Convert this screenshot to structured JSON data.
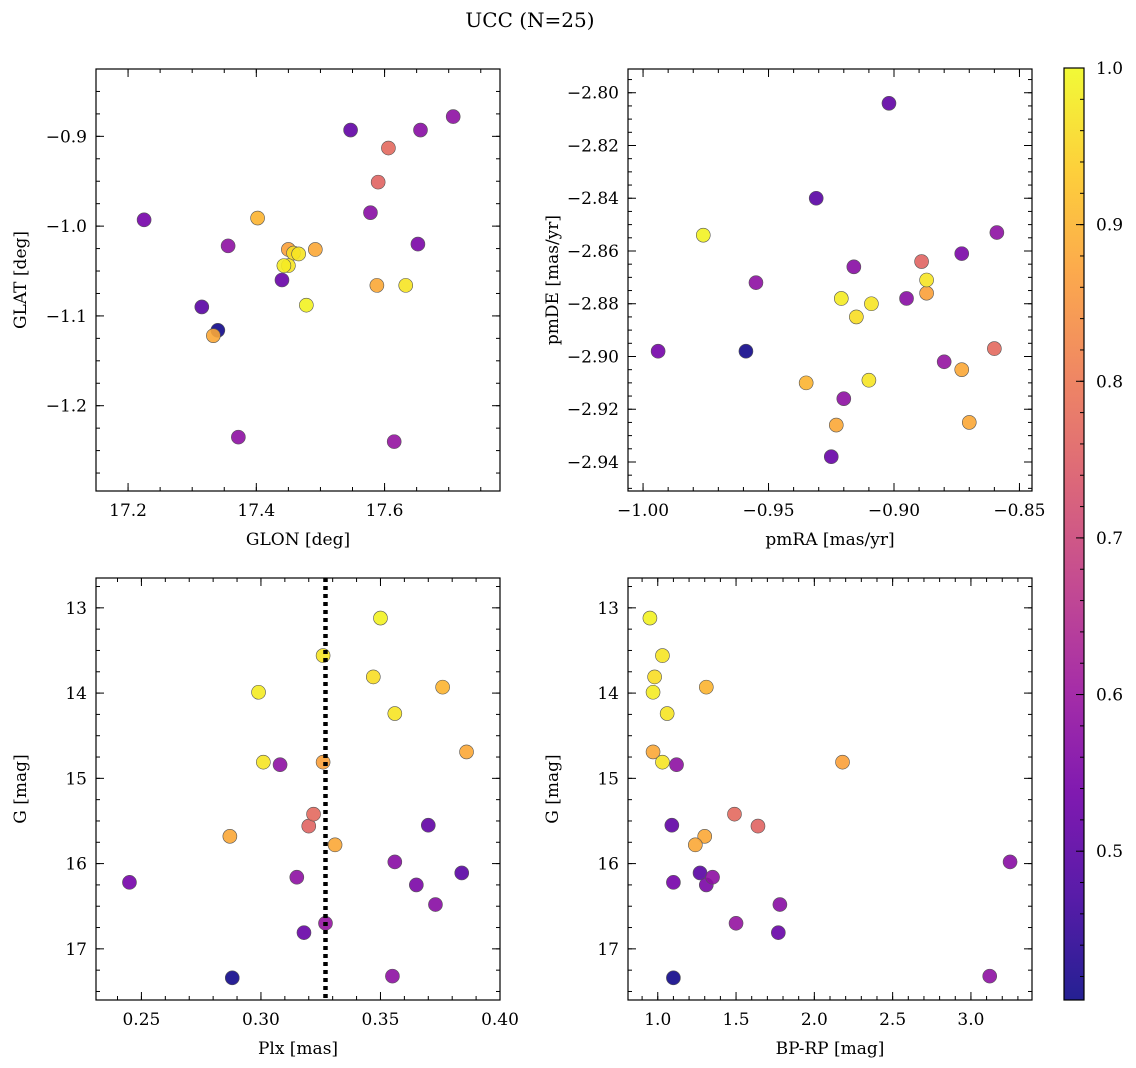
{
  "chart_data": {
    "title": "UCC (N=25)",
    "type": "scatter",
    "colorbar": {
      "min": 0.405,
      "max": 1.0,
      "ticks": [
        0.5,
        0.6,
        0.7,
        0.8,
        0.9,
        1.0
      ],
      "tick_labels": [
        "0.5",
        "0.6",
        "0.7",
        "0.8",
        "0.9",
        "1.0"
      ],
      "colormap": "plasma",
      "colormap_stops": [
        "#0d0887",
        "#46039f",
        "#7201a8",
        "#9c179e",
        "#bd3786",
        "#d8576b",
        "#ed7953",
        "#fb9f3a",
        "#fdca26",
        "#f0f921"
      ]
    },
    "stars": [
      {
        "glon": 17.225,
        "glat": -0.993,
        "pmra": -0.994,
        "pmde": -2.898,
        "plx": 0.245,
        "g": 16.22,
        "bprp": 1.1,
        "p": 0.54
      },
      {
        "glon": 17.315,
        "glat": -1.09,
        "pmra": -0.931,
        "pmde": -2.84,
        "plx": 0.384,
        "g": 16.11,
        "bprp": 1.27,
        "p": 0.5
      },
      {
        "glon": 17.34,
        "glat": -1.116,
        "pmra": -0.959,
        "pmde": -2.898,
        "plx": 0.288,
        "g": 17.34,
        "bprp": 1.1,
        "p": 0.41
      },
      {
        "glon": 17.333,
        "glat": -1.122,
        "pmra": -0.923,
        "pmde": -2.926,
        "plx": 0.287,
        "g": 15.68,
        "bprp": 1.3,
        "p": 0.88
      },
      {
        "glon": 17.356,
        "glat": -1.022,
        "pmra": -0.955,
        "pmde": -2.872,
        "plx": 0.308,
        "g": 14.84,
        "bprp": 1.12,
        "p": 0.58
      },
      {
        "glon": 17.372,
        "glat": -1.235,
        "pmra": -0.92,
        "pmde": -2.916,
        "plx": 0.355,
        "g": 17.32,
        "bprp": 3.12,
        "p": 0.58
      },
      {
        "glon": 17.402,
        "glat": -0.991,
        "pmra": -0.935,
        "pmde": -2.91,
        "plx": 0.376,
        "g": 13.93,
        "bprp": 1.31,
        "p": 0.9
      },
      {
        "glon": 17.44,
        "glat": -1.06,
        "pmra": -0.925,
        "pmde": -2.938,
        "plx": 0.318,
        "g": 16.81,
        "bprp": 1.77,
        "p": 0.52
      },
      {
        "glon": 17.443,
        "glat": -1.044,
        "pmra": -0.921,
        "pmde": -2.878,
        "plx": 0.299,
        "g": 13.99,
        "bprp": 0.97,
        "p": 0.98
      },
      {
        "glon": 17.45,
        "glat": -1.026,
        "pmra": -0.887,
        "pmde": -2.876,
        "plx": 0.326,
        "g": 14.81,
        "bprp": 2.18,
        "p": 0.87
      },
      {
        "glon": 17.45,
        "glat": -1.044,
        "pmra": -0.91,
        "pmde": -2.909,
        "plx": 0.301,
        "g": 14.81,
        "bprp": 1.03,
        "p": 0.97
      },
      {
        "glon": 17.458,
        "glat": -1.03,
        "pmra": -0.915,
        "pmde": -2.885,
        "plx": 0.347,
        "g": 13.81,
        "bprp": 0.98,
        "p": 0.96
      },
      {
        "glon": 17.466,
        "glat": -1.031,
        "pmra": -0.909,
        "pmde": -2.88,
        "plx": 0.356,
        "g": 14.24,
        "bprp": 1.06,
        "p": 0.97
      },
      {
        "glon": 17.478,
        "glat": -1.088,
        "pmra": -0.976,
        "pmde": -2.854,
        "plx": 0.35,
        "g": 13.12,
        "bprp": 0.95,
        "p": 0.99
      },
      {
        "glon": 17.492,
        "glat": -1.026,
        "pmra": -0.873,
        "pmde": -2.905,
        "plx": 0.386,
        "g": 14.69,
        "bprp": 0.97,
        "p": 0.88
      },
      {
        "glon": 17.547,
        "glat": -0.893,
        "pmra": -0.902,
        "pmde": -2.804,
        "plx": 0.37,
        "g": 15.55,
        "bprp": 1.09,
        "p": 0.51
      },
      {
        "glon": 17.578,
        "glat": -0.985,
        "pmra": -0.895,
        "pmde": -2.878,
        "plx": 0.356,
        "g": 15.98,
        "bprp": 3.25,
        "p": 0.57
      },
      {
        "glon": 17.59,
        "glat": -0.951,
        "pmra": -0.889,
        "pmde": -2.864,
        "plx": 0.32,
        "g": 15.56,
        "bprp": 1.64,
        "p": 0.76
      },
      {
        "glon": 17.588,
        "glat": -1.066,
        "pmra": -0.87,
        "pmde": -2.925,
        "plx": 0.331,
        "g": 15.78,
        "bprp": 1.24,
        "p": 0.88
      },
      {
        "glon": 17.606,
        "glat": -0.913,
        "pmra": -0.86,
        "pmde": -2.897,
        "plx": 0.322,
        "g": 15.42,
        "bprp": 1.49,
        "p": 0.77
      },
      {
        "glon": 17.615,
        "glat": -1.24,
        "pmra": -0.88,
        "pmde": -2.902,
        "plx": 0.327,
        "g": 16.7,
        "bprp": 1.5,
        "p": 0.59
      },
      {
        "glon": 17.633,
        "glat": -1.066,
        "pmra": -0.887,
        "pmde": -2.871,
        "plx": 0.326,
        "g": 13.56,
        "bprp": 1.03,
        "p": 0.97
      },
      {
        "glon": 17.652,
        "glat": -1.02,
        "pmra": -0.873,
        "pmde": -2.861,
        "plx": 0.365,
        "g": 16.25,
        "bprp": 1.31,
        "p": 0.55
      },
      {
        "glon": 17.656,
        "glat": -0.893,
        "pmra": -0.916,
        "pmde": -2.866,
        "plx": 0.373,
        "g": 16.48,
        "bprp": 1.78,
        "p": 0.57
      },
      {
        "glon": 17.707,
        "glat": -0.878,
        "pmra": -0.859,
        "pmde": -2.853,
        "plx": 0.315,
        "g": 16.16,
        "bprp": 1.35,
        "p": 0.58
      }
    ],
    "panels": [
      {
        "id": "glon-glat",
        "x": "glon",
        "y": "glat",
        "xlabel": "GLON [deg]",
        "ylabel": "GLAT [deg]",
        "xlim": [
          17.15,
          17.78
        ],
        "ylim": [
          -1.295,
          -0.825
        ],
        "xticks": [
          17.2,
          17.4,
          17.6
        ],
        "xtick_labels": [
          "17.2",
          "17.4",
          "17.6"
        ],
        "yticks": [
          -0.9,
          -1.0,
          -1.1,
          -1.2
        ],
        "ytick_labels": [
          "−0.9",
          "−1.0",
          "−1.1",
          "−1.2"
        ],
        "xminor": 0.05,
        "yminor": 0.025
      },
      {
        "id": "pmra-pmde",
        "x": "pmra",
        "y": "pmde",
        "xlabel": "pmRA [mas/yr]",
        "ylabel": "pmDE [mas/yr]",
        "xlim": [
          -1.006,
          -0.845
        ],
        "ylim": [
          -2.951,
          -2.791
        ],
        "xticks": [
          -1.0,
          -0.95,
          -0.9,
          -0.85
        ],
        "xtick_labels": [
          "−1.00",
          "−0.95",
          "−0.90",
          "−0.85"
        ],
        "yticks": [
          -2.8,
          -2.82,
          -2.84,
          -2.86,
          -2.88,
          -2.9,
          -2.92,
          -2.94
        ],
        "ytick_labels": [
          "−2.80",
          "−2.82",
          "−2.84",
          "−2.86",
          "−2.88",
          "−2.90",
          "−2.92",
          "−2.94"
        ],
        "xminor": 0.01,
        "yminor": 0.005
      },
      {
        "id": "plx-g",
        "x": "plx",
        "y": "g",
        "xlabel": "Plx [mas]",
        "ylabel": "G [mag]",
        "xlim": [
          0.231,
          0.4
        ],
        "ylim": [
          17.6,
          12.65
        ],
        "xticks": [
          0.25,
          0.3,
          0.35,
          0.4
        ],
        "xtick_labels": [
          "0.25",
          "0.30",
          "0.35",
          "0.40"
        ],
        "yticks": [
          13,
          14,
          15,
          16,
          17
        ],
        "ytick_labels": [
          "13",
          "14",
          "15",
          "16",
          "17"
        ],
        "xminor": 0.01,
        "yminor": 0.25,
        "vline": 0.327
      },
      {
        "id": "bprp-g",
        "x": "bprp",
        "y": "g",
        "xlabel": "BP-RP [mag]",
        "ylabel": "G [mag]",
        "xlim": [
          0.81,
          3.39
        ],
        "ylim": [
          17.6,
          12.65
        ],
        "xticks": [
          1.0,
          1.5,
          2.0,
          2.5,
          3.0
        ],
        "xtick_labels": [
          "1.0",
          "1.5",
          "2.0",
          "2.5",
          "3.0"
        ],
        "yticks": [
          13,
          14,
          15,
          16,
          17
        ],
        "ytick_labels": [
          "13",
          "14",
          "15",
          "16",
          "17"
        ],
        "xminor": 0.1,
        "yminor": 0.25
      }
    ]
  }
}
